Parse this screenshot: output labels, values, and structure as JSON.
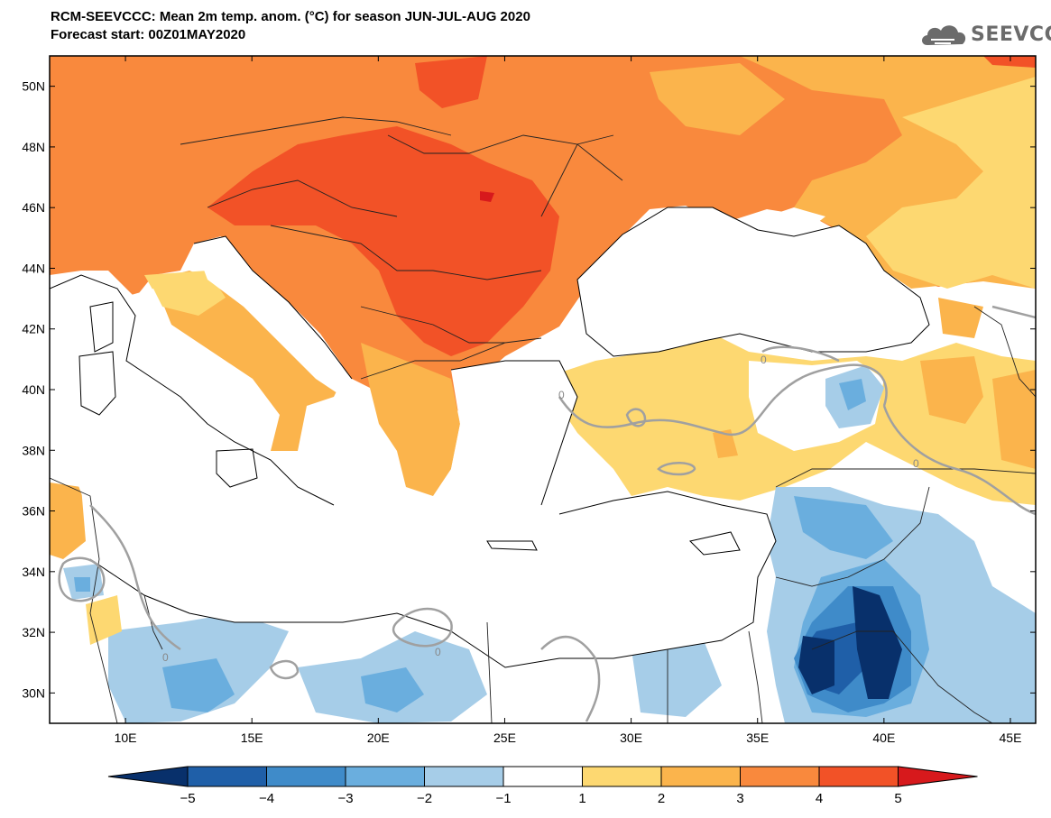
{
  "header": {
    "title": "RCM-SEEVCCC: Mean 2m temp. anom. (°C) for season JUN-JUL-AUG 2020",
    "subtitle": "Forecast start: 00Z01MAY2020"
  },
  "logo": {
    "text": "SEEVCCC",
    "icon": "cloud-icon"
  },
  "map": {
    "lon_range": [
      7,
      46
    ],
    "lat_range": [
      29,
      51
    ],
    "lat_ticks": [
      {
        "value": 50,
        "label": "50N"
      },
      {
        "value": 48,
        "label": "48N"
      },
      {
        "value": 46,
        "label": "46N"
      },
      {
        "value": 44,
        "label": "44N"
      },
      {
        "value": 42,
        "label": "42N"
      },
      {
        "value": 40,
        "label": "40N"
      },
      {
        "value": 38,
        "label": "38N"
      },
      {
        "value": 36,
        "label": "36N"
      },
      {
        "value": 34,
        "label": "34N"
      },
      {
        "value": 32,
        "label": "32N"
      },
      {
        "value": 30,
        "label": "30N"
      }
    ],
    "lon_ticks": [
      {
        "value": 10,
        "label": "10E"
      },
      {
        "value": 15,
        "label": "15E"
      },
      {
        "value": 20,
        "label": "20E"
      },
      {
        "value": 25,
        "label": "25E"
      },
      {
        "value": 30,
        "label": "30E"
      },
      {
        "value": 35,
        "label": "35E"
      },
      {
        "value": 40,
        "label": "40E"
      },
      {
        "value": 45,
        "label": "45E"
      }
    ],
    "contour_label": "0"
  },
  "colorbar": {
    "bins": [
      {
        "color": "#08306b"
      },
      {
        "color": "#1f5fa8"
      },
      {
        "color": "#3f8bc9"
      },
      {
        "color": "#6aaede"
      },
      {
        "color": "#a6cde8"
      },
      {
        "color": "#ffffff"
      },
      {
        "color": "#fdd871"
      },
      {
        "color": "#fbb44c"
      },
      {
        "color": "#f9893d"
      },
      {
        "color": "#f25227"
      },
      {
        "color": "#d7191c"
      }
    ],
    "labels": [
      "−5",
      "−4",
      "−3",
      "−2",
      "−1",
      "1",
      "2",
      "3",
      "4",
      "5"
    ]
  }
}
